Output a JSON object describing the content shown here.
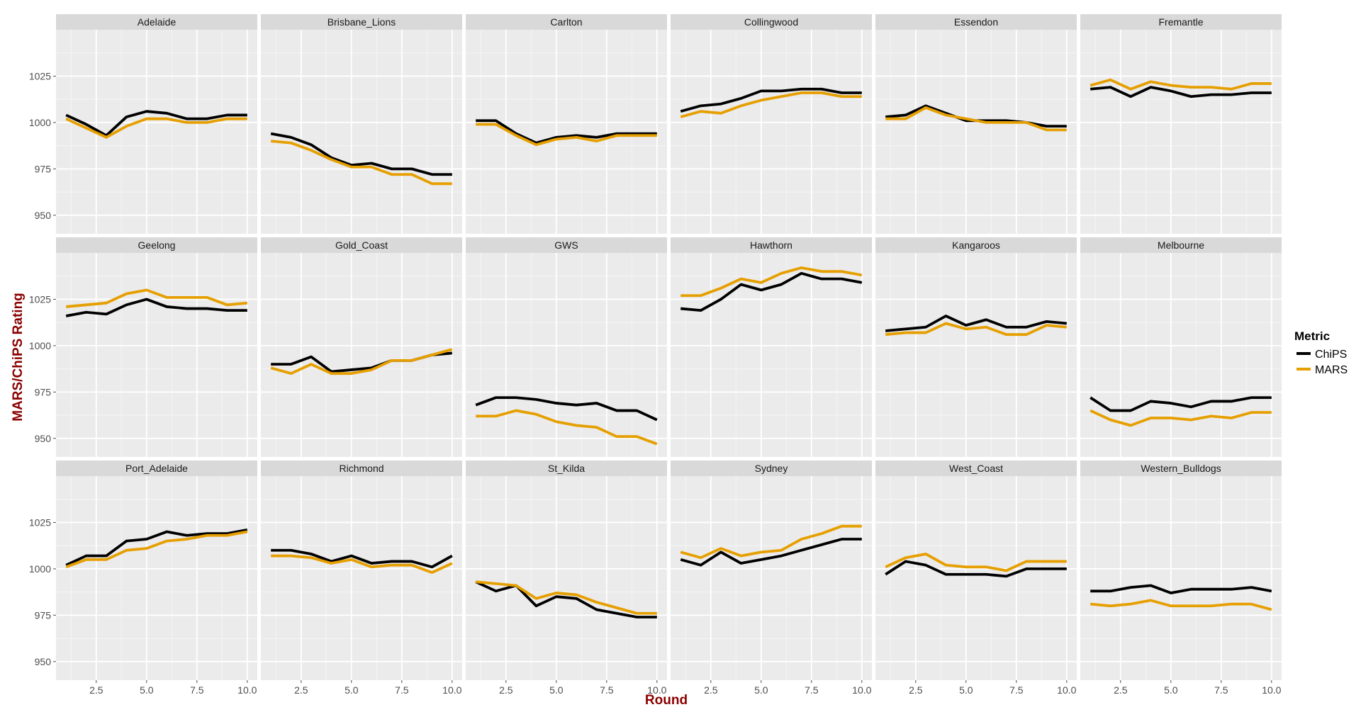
{
  "chart_data": {
    "type": "line",
    "layout": "facet-grid",
    "xlabel": "Round",
    "ylabel": "MARS/ChiPS Rating",
    "xlim": [
      0.5,
      10.5
    ],
    "ylim": [
      940,
      1050
    ],
    "x_ticks": [
      2.5,
      5.0,
      7.5,
      10.0
    ],
    "x_tick_labels": [
      "2.5",
      "5.0",
      "7.5",
      "10.0"
    ],
    "y_ticks": [
      950,
      975,
      1000,
      1025
    ],
    "y_tick_labels": [
      "950",
      "975",
      "1000",
      "1025"
    ],
    "grid": true,
    "legend": {
      "title": "Metric",
      "position": "right",
      "entries": [
        {
          "name": "ChiPS",
          "color": "#000000"
        },
        {
          "name": "MARS",
          "color": "#E69F00"
        }
      ]
    },
    "x": [
      1,
      2,
      3,
      4,
      5,
      6,
      7,
      8,
      9,
      10
    ],
    "panels": [
      {
        "team": "Adelaide",
        "ChiPS": [
          1004,
          999,
          993,
          1003,
          1006,
          1005,
          1002,
          1002,
          1004,
          1004
        ],
        "MARS": [
          1002,
          997,
          992,
          998,
          1002,
          1002,
          1000,
          1000,
          1002,
          1002
        ]
      },
      {
        "team": "Brisbane_Lions",
        "ChiPS": [
          994,
          992,
          988,
          981,
          977,
          978,
          975,
          975,
          972,
          972
        ],
        "MARS": [
          990,
          989,
          985,
          980,
          976,
          976,
          972,
          972,
          967,
          967
        ]
      },
      {
        "team": "Carlton",
        "ChiPS": [
          1001,
          1001,
          994,
          989,
          992,
          993,
          992,
          994,
          994,
          994
        ],
        "MARS": [
          999,
          999,
          993,
          988,
          991,
          992,
          990,
          993,
          993,
          993
        ]
      },
      {
        "team": "Collingwood",
        "ChiPS": [
          1006,
          1009,
          1010,
          1013,
          1017,
          1017,
          1018,
          1018,
          1016,
          1016
        ],
        "MARS": [
          1003,
          1006,
          1005,
          1009,
          1012,
          1014,
          1016,
          1016,
          1014,
          1014
        ]
      },
      {
        "team": "Essendon",
        "ChiPS": [
          1003,
          1004,
          1009,
          1005,
          1001,
          1001,
          1001,
          1000,
          998,
          998
        ],
        "MARS": [
          1002,
          1002,
          1008,
          1004,
          1002,
          1000,
          1000,
          1000,
          996,
          996
        ]
      },
      {
        "team": "Fremantle",
        "ChiPS": [
          1018,
          1019,
          1014,
          1019,
          1017,
          1014,
          1015,
          1015,
          1016,
          1016
        ],
        "MARS": [
          1020,
          1023,
          1018,
          1022,
          1020,
          1019,
          1019,
          1018,
          1021,
          1021
        ]
      },
      {
        "team": "Geelong",
        "ChiPS": [
          1016,
          1018,
          1017,
          1022,
          1025,
          1021,
          1020,
          1020,
          1019,
          1019
        ],
        "MARS": [
          1021,
          1022,
          1023,
          1028,
          1030,
          1026,
          1026,
          1026,
          1022,
          1023
        ]
      },
      {
        "team": "Gold_Coast",
        "ChiPS": [
          990,
          990,
          994,
          986,
          987,
          988,
          992,
          992,
          995,
          996
        ],
        "MARS": [
          988,
          985,
          990,
          985,
          985,
          987,
          992,
          992,
          995,
          998
        ]
      },
      {
        "team": "GWS",
        "ChiPS": [
          968,
          972,
          972,
          971,
          969,
          968,
          969,
          965,
          965,
          960
        ],
        "MARS": [
          962,
          962,
          965,
          963,
          959,
          957,
          956,
          951,
          951,
          947
        ]
      },
      {
        "team": "Hawthorn",
        "ChiPS": [
          1020,
          1019,
          1025,
          1033,
          1030,
          1033,
          1039,
          1036,
          1036,
          1034
        ],
        "MARS": [
          1027,
          1027,
          1031,
          1036,
          1034,
          1039,
          1042,
          1040,
          1040,
          1038
        ]
      },
      {
        "team": "Kangaroos",
        "ChiPS": [
          1008,
          1009,
          1010,
          1016,
          1011,
          1014,
          1010,
          1010,
          1013,
          1012
        ],
        "MARS": [
          1006,
          1007,
          1007,
          1012,
          1009,
          1010,
          1006,
          1006,
          1011,
          1010
        ]
      },
      {
        "team": "Melbourne",
        "ChiPS": [
          972,
          965,
          965,
          970,
          969,
          967,
          970,
          970,
          972,
          972
        ],
        "MARS": [
          965,
          960,
          957,
          961,
          961,
          960,
          962,
          961,
          964,
          964
        ]
      },
      {
        "team": "Port_Adelaide",
        "ChiPS": [
          1002,
          1007,
          1007,
          1015,
          1016,
          1020,
          1018,
          1019,
          1019,
          1021
        ],
        "MARS": [
          1001,
          1005,
          1005,
          1010,
          1011,
          1015,
          1016,
          1018,
          1018,
          1020
        ]
      },
      {
        "team": "Richmond",
        "ChiPS": [
          1010,
          1010,
          1008,
          1004,
          1007,
          1003,
          1004,
          1004,
          1001,
          1007
        ],
        "MARS": [
          1007,
          1007,
          1006,
          1003,
          1005,
          1001,
          1002,
          1002,
          998,
          1003
        ]
      },
      {
        "team": "St_Kilda",
        "ChiPS": [
          993,
          988,
          991,
          980,
          985,
          984,
          978,
          976,
          974,
          974
        ],
        "MARS": [
          993,
          992,
          991,
          984,
          987,
          986,
          982,
          979,
          976,
          976
        ]
      },
      {
        "team": "Sydney",
        "ChiPS": [
          1005,
          1002,
          1009,
          1003,
          1005,
          1007,
          1010,
          1013,
          1016,
          1016
        ],
        "MARS": [
          1009,
          1006,
          1011,
          1007,
          1009,
          1010,
          1016,
          1019,
          1023,
          1023
        ]
      },
      {
        "team": "West_Coast",
        "ChiPS": [
          997,
          1004,
          1002,
          997,
          997,
          997,
          996,
          1000,
          1000,
          1000
        ],
        "MARS": [
          1001,
          1006,
          1008,
          1002,
          1001,
          1001,
          999,
          1004,
          1004,
          1004
        ]
      },
      {
        "team": "Western_Bulldogs",
        "ChiPS": [
          988,
          988,
          990,
          991,
          987,
          989,
          989,
          989,
          990,
          988
        ],
        "MARS": [
          981,
          980,
          981,
          983,
          980,
          980,
          980,
          981,
          981,
          978
        ]
      }
    ]
  }
}
